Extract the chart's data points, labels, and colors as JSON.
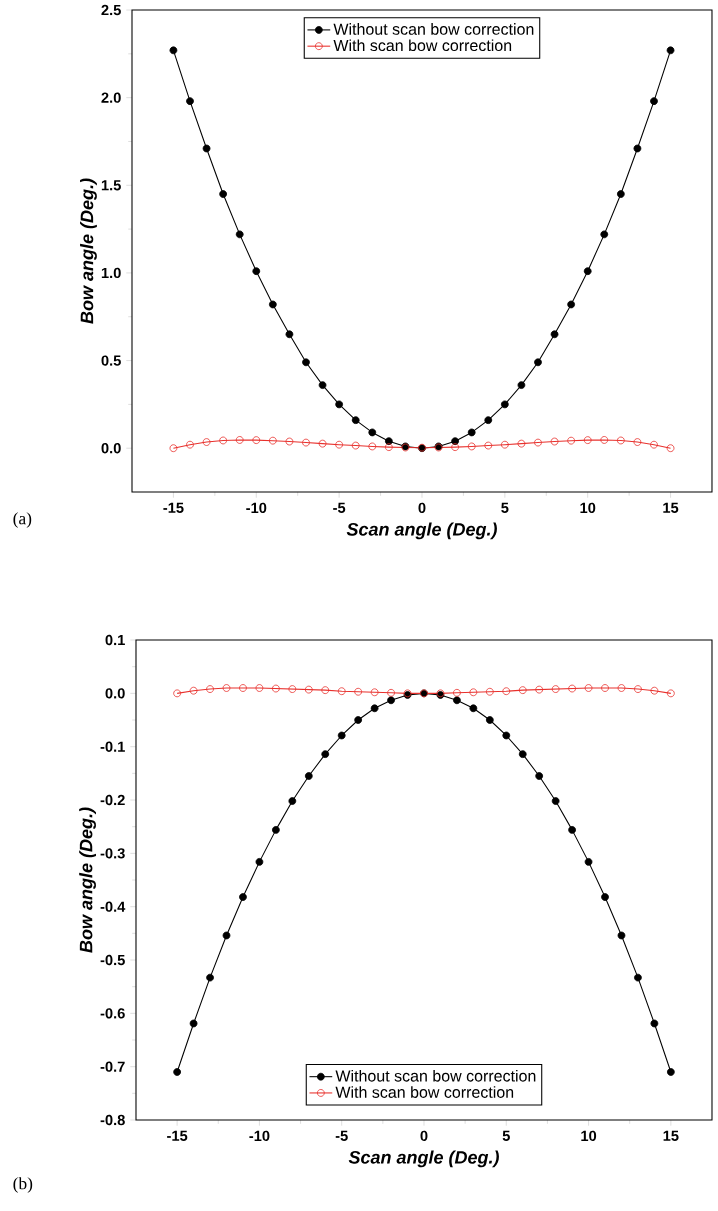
{
  "chart_data": [
    {
      "type": "line",
      "xlabel": "Scan angle (Deg.)",
      "ylabel": "Bow angle (Deg.)",
      "annotations": [
        "(a)"
      ],
      "x": [
        -15,
        -14,
        -13,
        -12,
        -11,
        -10,
        -9,
        -8,
        -7,
        -6,
        -5,
        -4,
        -3,
        -2,
        -1,
        0,
        1,
        2,
        3,
        4,
        5,
        6,
        7,
        8,
        9,
        10,
        11,
        12,
        13,
        14,
        15
      ],
      "series": [
        {
          "name": "Without scan bow correction",
          "color": "#000000",
          "values": [
            2.27,
            1.98,
            1.71,
            1.45,
            1.22,
            1.01,
            0.82,
            0.65,
            0.49,
            0.36,
            0.25,
            0.16,
            0.09,
            0.04,
            0.01,
            0,
            0.01,
            0.04,
            0.09,
            0.16,
            0.25,
            0.36,
            0.49,
            0.65,
            0.82,
            1.01,
            1.22,
            1.45,
            1.71,
            1.98,
            2.27
          ]
        },
        {
          "name": "With scan bow correction",
          "color": "#e8302c",
          "values": [
            0.0,
            0.02,
            0.035,
            0.044,
            0.047,
            0.046,
            0.043,
            0.038,
            0.032,
            0.026,
            0.02,
            0.015,
            0.01,
            0.006,
            0.004,
            0.003,
            0.004,
            0.006,
            0.01,
            0.015,
            0.02,
            0.026,
            0.032,
            0.038,
            0.043,
            0.046,
            0.047,
            0.044,
            0.035,
            0.02,
            0.0
          ]
        }
      ],
      "marker": "circle",
      "legend": "top",
      "xlim": [
        -17.5,
        17.5
      ],
      "ylim": [
        -0.25,
        2.5
      ],
      "xticks": [
        -15,
        -10,
        -5,
        0,
        5,
        10,
        15
      ],
      "yticks": [
        {
          "value": 0,
          "label": "0.0"
        },
        0.5,
        {
          "value": 1,
          "label": "1.0"
        },
        1.5,
        {
          "value": 2,
          "label": "2.0"
        },
        2.5
      ]
    },
    {
      "type": "line",
      "xlabel": "Scan angle (Deg.)",
      "ylabel": "Bow angle (Deg.)",
      "annotations": [
        "(b)"
      ],
      "x": [
        -15,
        -14,
        -13,
        -12,
        -11,
        -10,
        -9,
        -8,
        -7,
        -6,
        -5,
        -4,
        -3,
        -2,
        -1,
        0,
        1,
        2,
        3,
        4,
        5,
        6,
        7,
        8,
        9,
        10,
        11,
        12,
        13,
        14,
        15
      ],
      "series": [
        {
          "name": "Without scan bow correction",
          "color": "#000000",
          "values": [
            -0.71,
            -0.619,
            -0.533,
            -0.454,
            -0.382,
            -0.316,
            -0.256,
            -0.202,
            -0.155,
            -0.114,
            -0.079,
            -0.05,
            -0.028,
            -0.013,
            -0.003,
            0,
            -0.003,
            -0.013,
            -0.028,
            -0.05,
            -0.079,
            -0.114,
            -0.155,
            -0.202,
            -0.256,
            -0.316,
            -0.382,
            -0.454,
            -0.533,
            -0.619,
            -0.71
          ]
        },
        {
          "name": "With scan bow correction",
          "color": "#e8302c",
          "values": [
            0,
            0.005,
            0.008,
            0.01,
            0.01,
            0.01,
            0.009,
            0.008,
            0.007,
            0.006,
            0.004,
            0.003,
            0.002,
            0.001,
            0,
            0,
            0,
            0.001,
            0.002,
            0.003,
            0.004,
            0.006,
            0.007,
            0.008,
            0.009,
            0.01,
            0.01,
            0.01,
            0.008,
            0.005,
            0
          ]
        }
      ],
      "marker": "circle",
      "legend": "bottom",
      "xlim": [
        -17.5,
        17.5
      ],
      "ylim": [
        -0.8,
        0.1
      ],
      "xticks": [
        -15,
        -10,
        -5,
        0,
        5,
        10,
        15
      ],
      "yticks": [
        {
          "value": -0.8,
          "label": "-0.8"
        },
        -0.7,
        -0.6,
        -0.5,
        -0.4,
        -0.3,
        -0.2,
        -0.1,
        {
          "value": 0,
          "label": "0.0"
        },
        0.1
      ]
    }
  ]
}
